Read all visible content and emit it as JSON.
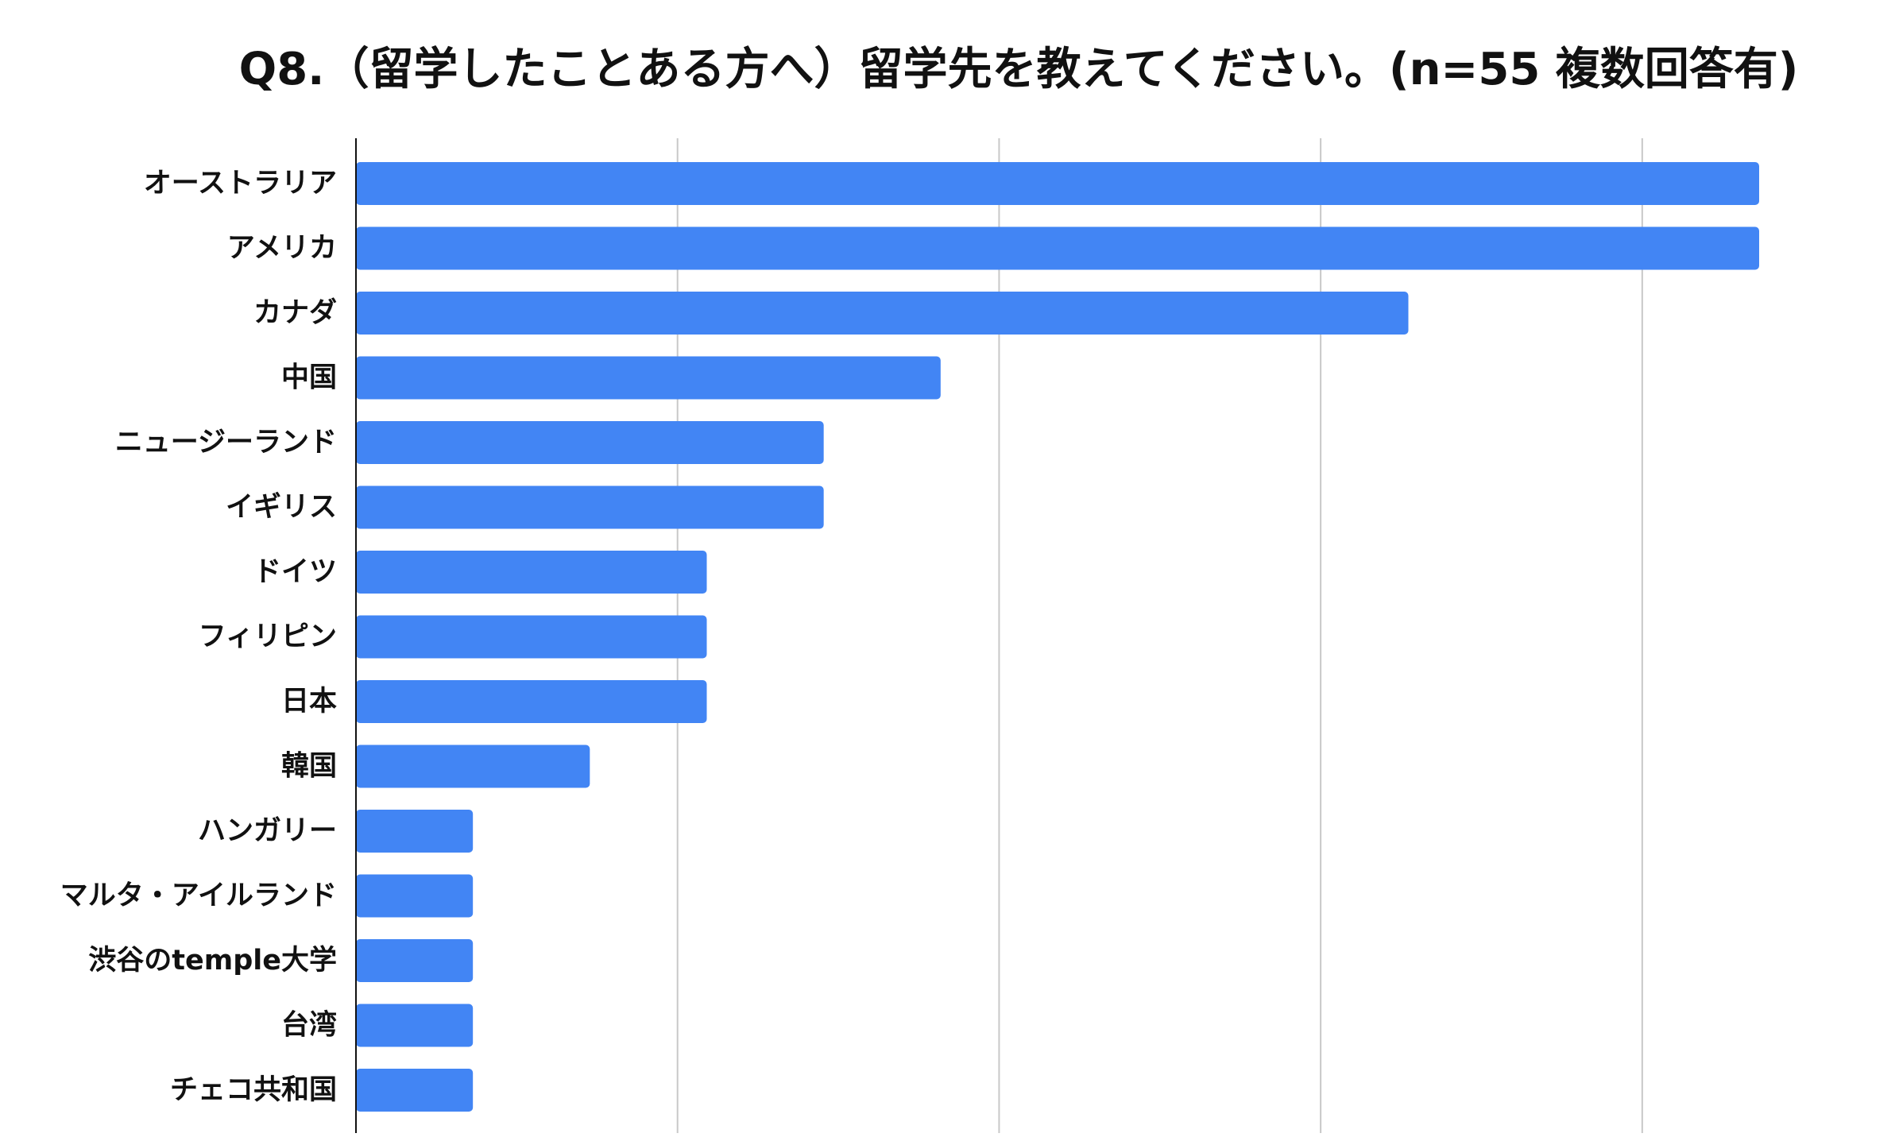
{
  "chart_data": {
    "type": "bar",
    "orientation": "horizontal",
    "title": "Q8.（留学したことある方へ）留学先を教えてください。(n=55 複数回答有)",
    "xlabel": "",
    "ylabel": "",
    "categories": [
      "オーストラリア",
      "アメリカ",
      "カナダ",
      "中国",
      "ニュージーランド",
      "イギリス",
      "ドイツ",
      "フィリピン",
      "日本",
      "韓国",
      "ハンガリー",
      "マルタ・アイルランド",
      "渋谷のtemple大学",
      "台湾",
      "チェコ共和国"
    ],
    "values": [
      12,
      12,
      9,
      5,
      4,
      4,
      3,
      3,
      3,
      2,
      1,
      1,
      1,
      1,
      1
    ],
    "xlim": [
      0,
      12.5
    ],
    "gridlines_at": [
      0,
      2.75,
      5.5,
      8.25,
      11
    ],
    "x_tick_labels_visible": false,
    "grid": true,
    "legend": "none",
    "colors": {
      "bar": "#4285f4",
      "grid": "#c8c8c8",
      "axis": "#111111",
      "text": "#111111"
    }
  }
}
